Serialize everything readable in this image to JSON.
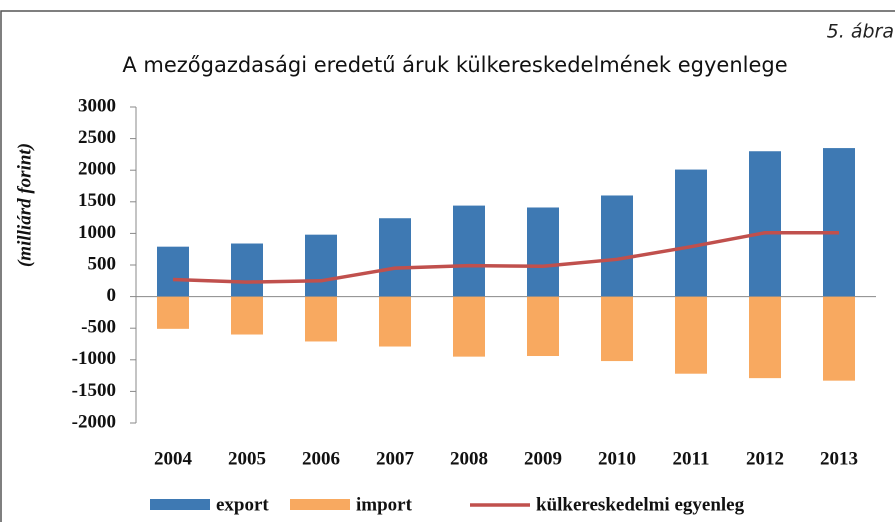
{
  "chart_data": {
    "type": "bar_line",
    "title": "A mezőgazdasági eredetű áruk külkereskedelmének egyenlege",
    "figure_label": "5. ábra",
    "y_label": "(milliárd forint)",
    "categories": [
      "2004",
      "2005",
      "2006",
      "2007",
      "2008",
      "2009",
      "2010",
      "2011",
      "2012",
      "2013"
    ],
    "series": [
      {
        "name": "export",
        "color": "#3e79b3",
        "kind": "bar",
        "values": [
          790,
          840,
          980,
          1240,
          1440,
          1410,
          1600,
          2010,
          2300,
          2350
        ]
      },
      {
        "name": "import",
        "color": "#f8a960",
        "kind": "bar",
        "values": [
          -510,
          -600,
          -710,
          -790,
          -950,
          -940,
          -1020,
          -1220,
          -1290,
          -1330
        ]
      },
      {
        "name": "külkereskedelmi egyenleg",
        "color": "#c0504d",
        "kind": "line",
        "values": [
          270,
          230,
          250,
          450,
          490,
          480,
          590,
          790,
          1010,
          1010
        ]
      }
    ],
    "ylim": [
      -2000,
      3000
    ],
    "yticks": [
      -2000,
      -1500,
      -1000,
      -500,
      0,
      500,
      1000,
      1500,
      2000,
      2500,
      3000
    ],
    "grid": false,
    "legend": "bottom"
  }
}
